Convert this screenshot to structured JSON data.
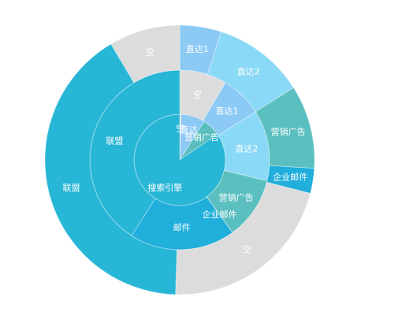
{
  "chart_data": {
    "type": "sunburst",
    "title": "",
    "start_angle_deg": 90,
    "direction": "clockwise",
    "rings": [
      {
        "name": "inner",
        "segments": [
          {
            "label": "空",
            "value": 0.5,
            "color": "#dcdcdc"
          },
          {
            "label": "直达",
            "value": 8.5,
            "color": "#8cc9f5"
          },
          {
            "label": "营销广告",
            "value": 6.5,
            "color": "#5bbfbf"
          },
          {
            "label": "搜索引擎",
            "value": 84.5,
            "color": "#27b6d6"
          }
        ]
      },
      {
        "name": "middle",
        "segments": [
          {
            "label": "空",
            "value": 8.5,
            "color": "#dcdcdc"
          },
          {
            "label": "直达1",
            "value": 7.5,
            "color": "#8cc9f5"
          },
          {
            "label": "直达2",
            "value": 12.75,
            "color": "#8ad9f6"
          },
          {
            "label": "营销广告",
            "value": 11.25,
            "color": "#5bbfbf"
          },
          {
            "label": "企业邮件",
            "value": 0.01,
            "color": "#20aedb"
          },
          {
            "label": "邮件",
            "value": 19.0,
            "color": "#20aedb"
          },
          {
            "label": "联盟",
            "value": 40.99,
            "color": "#27b6d6"
          }
        ]
      },
      {
        "name": "outer",
        "segments": [
          {
            "label": "直达1",
            "value": 5.0,
            "color": "#8cc9f5"
          },
          {
            "label": "直达2",
            "value": 11.0,
            "color": "#8ad9f6"
          },
          {
            "label": "营销广告",
            "value": 10.0,
            "color": "#5bbfbf"
          },
          {
            "label": "企业邮件",
            "value": 3.0,
            "color": "#20aedb"
          },
          {
            "label": "空",
            "value": 21.5,
            "color": "#dcdcdc"
          },
          {
            "label": "联盟",
            "value": 40.99,
            "color": "#27b6d6"
          },
          {
            "label": "空",
            "value": 8.51,
            "color": "#dcdcdc"
          }
        ]
      }
    ],
    "legend": "none"
  }
}
